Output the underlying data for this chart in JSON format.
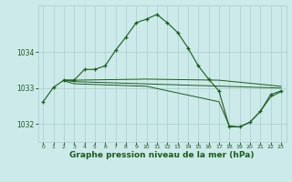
{
  "bg_color": "#cceaea",
  "grid_color": "#aacccc",
  "line_color": "#1a5c1a",
  "title": "Graphe pression niveau de la mer (hPa)",
  "title_fontsize": 6.5,
  "ylim": [
    1031.5,
    1035.3
  ],
  "xlim": [
    -0.5,
    23.5
  ],
  "yticks": [
    1032,
    1033,
    1034
  ],
  "xticks": [
    0,
    1,
    2,
    3,
    4,
    5,
    6,
    7,
    8,
    9,
    10,
    11,
    12,
    13,
    14,
    15,
    16,
    17,
    18,
    19,
    20,
    21,
    22,
    23
  ],
  "series": [
    {
      "x": [
        0,
        1,
        2,
        3,
        4,
        5,
        6,
        7,
        8,
        9,
        10,
        11,
        12,
        13,
        14,
        15,
        16,
        17,
        18,
        19,
        20,
        21,
        22,
        23
      ],
      "y": [
        1032.62,
        1033.02,
        1033.22,
        1033.22,
        1033.52,
        1033.52,
        1033.62,
        1034.05,
        1034.42,
        1034.82,
        1034.92,
        1035.05,
        1034.82,
        1034.55,
        1034.12,
        1033.62,
        1033.25,
        1032.92,
        1031.92,
        1031.92,
        1032.05,
        1032.35,
        1032.82,
        1032.92
      ],
      "marker": true
    },
    {
      "x": [
        2,
        3,
        10,
        17,
        23
      ],
      "y": [
        1033.22,
        1033.22,
        1033.25,
        1033.22,
        1033.05
      ],
      "marker": false
    },
    {
      "x": [
        2,
        3,
        23
      ],
      "y": [
        1033.22,
        1033.18,
        1033.0
      ],
      "marker": false
    },
    {
      "x": [
        2,
        3,
        10,
        17,
        18,
        19,
        20,
        21,
        22,
        23
      ],
      "y": [
        1033.2,
        1033.12,
        1033.05,
        1032.62,
        1031.95,
        1031.92,
        1032.05,
        1032.35,
        1032.75,
        1032.9
      ],
      "marker": false
    }
  ]
}
